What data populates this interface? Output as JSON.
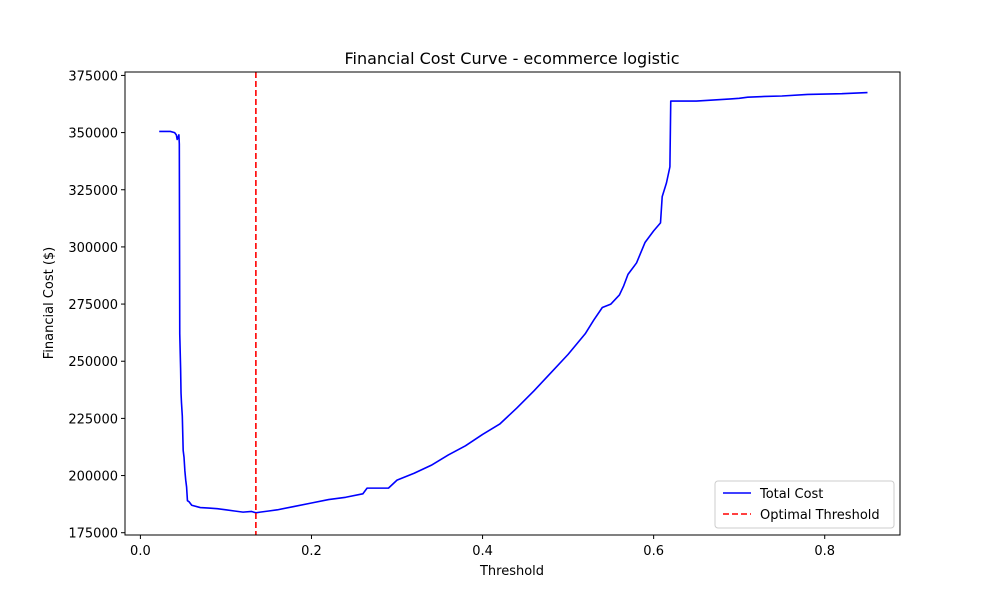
{
  "chart_data": {
    "type": "line",
    "title": "Financial Cost Curve - ecommerce logistic",
    "xlabel": "Threshold",
    "ylabel": "Financial Cost ($)",
    "xlim": [
      -0.018,
      0.888
    ],
    "ylim": [
      174000,
      376500
    ],
    "xticks": [
      0.0,
      0.2,
      0.4,
      0.6,
      0.8
    ],
    "xtick_labels": [
      "0.0",
      "0.2",
      "0.4",
      "0.6",
      "0.8"
    ],
    "yticks": [
      175000,
      200000,
      225000,
      250000,
      275000,
      300000,
      325000,
      350000,
      375000
    ],
    "ytick_labels": [
      "175000",
      "200000",
      "225000",
      "250000",
      "275000",
      "300000",
      "325000",
      "350000",
      "375000"
    ],
    "grid": false,
    "legend_position": "lower-right",
    "series": [
      {
        "name": "Total Cost",
        "color": "#0000ff",
        "style": "solid",
        "x": [
          0.022,
          0.035,
          0.04,
          0.042,
          0.043,
          0.045,
          0.0455,
          0.046,
          0.047,
          0.0475,
          0.048,
          0.049,
          0.05,
          0.051,
          0.052,
          0.053,
          0.054,
          0.055,
          0.057,
          0.058,
          0.06,
          0.07,
          0.08,
          0.09,
          0.1,
          0.11,
          0.12,
          0.13,
          0.135,
          0.14,
          0.15,
          0.16,
          0.18,
          0.2,
          0.22,
          0.24,
          0.26,
          0.265,
          0.28,
          0.29,
          0.3,
          0.32,
          0.34,
          0.36,
          0.38,
          0.4,
          0.42,
          0.44,
          0.46,
          0.48,
          0.5,
          0.52,
          0.53,
          0.54,
          0.55,
          0.56,
          0.565,
          0.57,
          0.58,
          0.59,
          0.6,
          0.608,
          0.61,
          0.615,
          0.619,
          0.62,
          0.65,
          0.69,
          0.7,
          0.71,
          0.73,
          0.75,
          0.78,
          0.82,
          0.85
        ],
        "y": [
          350500,
          350500,
          350000,
          349000,
          347000,
          349000,
          345000,
          262000,
          247000,
          236000,
          232000,
          226000,
          211000,
          208000,
          202000,
          198000,
          195000,
          189000,
          188500,
          188000,
          187000,
          186000,
          185800,
          185500,
          185000,
          184500,
          184000,
          184300,
          183700,
          184000,
          184500,
          185000,
          186500,
          188000,
          189500,
          190500,
          192000,
          194500,
          194500,
          194500,
          198000,
          201000,
          204500,
          209000,
          213000,
          218000,
          222500,
          229500,
          237000,
          245000,
          253000,
          262000,
          268000,
          273500,
          275000,
          279000,
          283000,
          288000,
          293000,
          302000,
          307000,
          310500,
          322000,
          328000,
          335000,
          363800,
          363800,
          364700,
          365000,
          365500,
          365800,
          366000,
          366700,
          367000,
          367500
        ]
      },
      {
        "name": "Optimal Threshold",
        "color": "#ff0000",
        "style": "dashed",
        "type": "vline",
        "x": 0.135
      }
    ]
  }
}
